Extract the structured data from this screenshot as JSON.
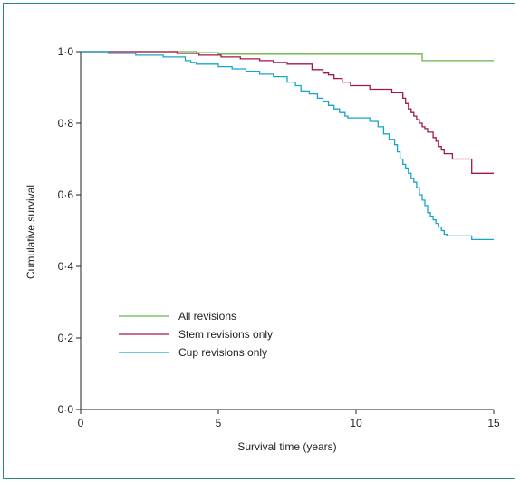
{
  "chart_data": {
    "type": "line",
    "step": true,
    "xlabel": "Survival time (years)",
    "ylabel": "Cumulative survival",
    "xlim": [
      0,
      15
    ],
    "ylim": [
      0,
      1
    ],
    "x_ticks": [
      "0",
      "5",
      "10",
      "15"
    ],
    "y_ticks": [
      "0·0",
      "0·2",
      "0·4",
      "0·6",
      "0·8",
      "1·0"
    ],
    "grid": false,
    "legend_position": "lower-left",
    "series": [
      {
        "name": "All revisions",
        "color": "#6bb34a",
        "x": [
          0,
          4.2,
          5.0,
          12.4,
          15
        ],
        "y": [
          1.0,
          0.997,
          0.993,
          0.975,
          0.975
        ]
      },
      {
        "name": "Stem revisions only",
        "color": "#a3174a",
        "x": [
          0,
          3.5,
          4.3,
          5.1,
          5.8,
          6.5,
          7.0,
          7.5,
          8.4,
          8.8,
          9.0,
          9.2,
          9.5,
          9.8,
          10.5,
          11.3,
          11.7,
          11.8,
          11.9,
          12.0,
          12.1,
          12.2,
          12.3,
          12.4,
          12.5,
          12.6,
          12.8,
          12.9,
          13.0,
          13.1,
          13.2,
          13.5,
          14.2,
          15
        ],
        "y": [
          1.0,
          0.995,
          0.99,
          0.985,
          0.98,
          0.975,
          0.97,
          0.965,
          0.95,
          0.94,
          0.935,
          0.925,
          0.915,
          0.905,
          0.895,
          0.885,
          0.87,
          0.855,
          0.84,
          0.83,
          0.82,
          0.81,
          0.8,
          0.79,
          0.785,
          0.775,
          0.76,
          0.75,
          0.735,
          0.725,
          0.715,
          0.7,
          0.66,
          0.66
        ]
      },
      {
        "name": "Cup revisions only",
        "color": "#1aa3c9",
        "x": [
          0,
          1.0,
          2.0,
          3.0,
          3.8,
          4.0,
          4.2,
          5.0,
          5.5,
          6.0,
          6.5,
          7.0,
          7.5,
          7.8,
          8.0,
          8.3,
          8.6,
          8.8,
          9.0,
          9.2,
          9.4,
          9.6,
          9.7,
          10.5,
          10.8,
          11.0,
          11.2,
          11.4,
          11.5,
          11.6,
          11.7,
          11.8,
          11.9,
          12.0,
          12.1,
          12.2,
          12.3,
          12.4,
          12.5,
          12.6,
          12.7,
          12.8,
          12.9,
          13.0,
          13.1,
          13.2,
          13.3,
          14.2,
          15
        ],
        "y": [
          1.0,
          0.995,
          0.99,
          0.985,
          0.975,
          0.97,
          0.965,
          0.958,
          0.952,
          0.945,
          0.937,
          0.93,
          0.915,
          0.905,
          0.89,
          0.882,
          0.87,
          0.86,
          0.85,
          0.84,
          0.83,
          0.82,
          0.815,
          0.805,
          0.79,
          0.77,
          0.755,
          0.74,
          0.72,
          0.7,
          0.685,
          0.675,
          0.66,
          0.645,
          0.635,
          0.62,
          0.6,
          0.585,
          0.57,
          0.55,
          0.54,
          0.53,
          0.52,
          0.51,
          0.5,
          0.49,
          0.485,
          0.475,
          0.475
        ]
      }
    ]
  }
}
